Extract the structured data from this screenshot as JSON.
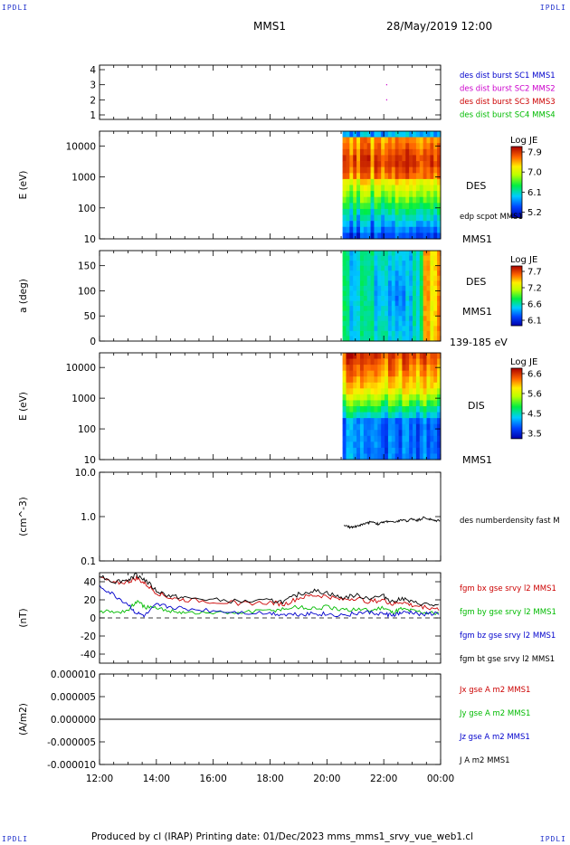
{
  "header": {
    "corner_tl": "IPDLI",
    "corner_tr": "IPDLI",
    "corner_bl": "IPDLI",
    "corner_br": "IPDLI",
    "title": "MMS1",
    "date": "28/May/2019 12:00"
  },
  "footer": {
    "text": "Produced by cl (IRAP)   Printing date: 01/Dec/2023   mms_mms1_srvy_vue_web1.cl"
  },
  "chart_data": [
    {
      "type": "scatter",
      "name": "burst-intervals",
      "ylabel": "",
      "y_ticks": [
        "1",
        "2",
        "3",
        "4"
      ],
      "ylim": [
        0.7,
        4.3
      ],
      "legend": [
        {
          "label": "des dist burst SC1 MMS1",
          "color": "#0000cc"
        },
        {
          "label": "des dist burst SC2 MMS2",
          "color": "#cc00cc"
        },
        {
          "label": "des dist burst SC3 MMS3",
          "color": "#cc0000"
        },
        {
          "label": "des dist burst SC4 MMS4",
          "color": "#00bb00"
        }
      ],
      "points": [
        {
          "x": 22.1,
          "y": 3,
          "color": "#cc00cc"
        },
        {
          "x": 22.1,
          "y": 2,
          "color": "#cc00cc"
        }
      ]
    },
    {
      "type": "heatmap",
      "name": "des-energy-spectrogram",
      "ylabel": "E (eV)",
      "scale": "log",
      "y_ticks": [
        "10",
        "100",
        "1000",
        "10000"
      ],
      "ylim": [
        10,
        30000
      ],
      "data_start_hour": 20.55,
      "side_labels": [
        "DES",
        "edp scpot MMS1",
        "MMS1"
      ],
      "colorbar": {
        "title": "Log JE",
        "ticks": [
          "7.9",
          "7.0",
          "6.1",
          "5.2"
        ],
        "range": [
          5.2,
          7.9
        ]
      }
    },
    {
      "type": "heatmap",
      "name": "des-pitch-angle",
      "ylabel": "a (deg)",
      "y_ticks": [
        "0",
        "50",
        "100",
        "150"
      ],
      "ylim": [
        0,
        180
      ],
      "data_start_hour": 20.55,
      "side_labels": [
        "DES",
        "MMS1",
        "139-185 eV"
      ],
      "colorbar": {
        "title": "Log JE",
        "ticks": [
          "7.7",
          "7.2",
          "6.6",
          "6.1"
        ],
        "range": [
          6.1,
          7.7
        ]
      }
    },
    {
      "type": "heatmap",
      "name": "dis-energy-spectrogram",
      "ylabel": "E (eV)",
      "scale": "log",
      "y_ticks": [
        "10",
        "100",
        "1000",
        "10000"
      ],
      "ylim": [
        10,
        30000
      ],
      "data_start_hour": 20.55,
      "side_labels": [
        "DIS",
        "MMS1"
      ],
      "colorbar": {
        "title": "Log JE",
        "ticks": [
          "6.6",
          "5.6",
          "4.5",
          "3.5"
        ],
        "range": [
          3.5,
          6.6
        ]
      }
    },
    {
      "type": "line",
      "name": "number-density",
      "ylabel": "(cm^-3)",
      "scale": "log",
      "y_ticks": [
        "0.1",
        "1.0",
        "10.0"
      ],
      "ylim": [
        0.1,
        10
      ],
      "legend": [
        {
          "label": "des numberdensity fast M",
          "color": "#000000"
        }
      ],
      "series": [
        {
          "name": "des numberdensity fast M",
          "color": "#000000",
          "x": [
            20.6,
            20.8,
            21.0,
            21.2,
            21.4,
            21.6,
            21.8,
            22.0,
            22.2,
            22.4,
            22.6,
            22.8,
            23.0,
            23.2,
            23.4,
            23.6,
            23.8,
            24.0
          ],
          "y": [
            0.62,
            0.58,
            0.6,
            0.65,
            0.7,
            0.78,
            0.68,
            0.75,
            0.8,
            0.72,
            0.85,
            0.78,
            0.9,
            0.82,
            0.95,
            0.88,
            0.8,
            0.85
          ]
        }
      ]
    },
    {
      "type": "line",
      "name": "magnetic-field",
      "ylabel": "(nT)",
      "y_ticks": [
        "-40",
        "-20",
        "0",
        "20",
        "40"
      ],
      "ylim": [
        -50,
        50
      ],
      "zero_line": "dashed",
      "legend": [
        {
          "label": "fgm bx gse srvy l2 MMS1",
          "color": "#cc0000"
        },
        {
          "label": "fgm by gse srvy l2 MMS1",
          "color": "#00bb00"
        },
        {
          "label": "fgm bz gse srvy l2 MMS1",
          "color": "#0000cc"
        },
        {
          "label": "fgm bt gse srvy l2 MMS1",
          "color": "#000000"
        }
      ],
      "series": [
        {
          "name": "fgm bx gse srvy l2 MMS1",
          "color": "#cc0000",
          "x": [
            12.0,
            12.5,
            13.0,
            13.3,
            13.6,
            14.0,
            14.5,
            15.0,
            16.0,
            17.0,
            18.0,
            18.5,
            19.0,
            19.5,
            20.0,
            20.5,
            21.0,
            21.5,
            22.0,
            22.3,
            22.6,
            23.0,
            23.5,
            24.0
          ],
          "y": [
            45,
            38,
            40,
            44,
            38,
            28,
            22,
            20,
            18,
            16,
            17,
            15,
            22,
            25,
            24,
            20,
            22,
            18,
            20,
            15,
            18,
            14,
            12,
            10
          ]
        },
        {
          "name": "fgm by gse srvy l2 MMS1",
          "color": "#00bb00",
          "x": [
            12.0,
            12.5,
            13.0,
            13.3,
            13.6,
            14.0,
            14.5,
            15.0,
            16.0,
            17.0,
            18.0,
            18.5,
            19.0,
            19.5,
            20.0,
            20.5,
            21.0,
            21.5,
            22.0,
            22.3,
            22.6,
            23.0,
            23.5,
            24.0
          ],
          "y": [
            8,
            6,
            8,
            18,
            12,
            10,
            8,
            6,
            5,
            6,
            8,
            10,
            12,
            10,
            12,
            8,
            10,
            8,
            12,
            6,
            10,
            8,
            6,
            5
          ]
        },
        {
          "name": "fgm bz gse srvy l2 MMS1",
          "color": "#0000cc",
          "x": [
            12.0,
            12.5,
            13.0,
            13.3,
            13.6,
            14.0,
            14.5,
            15.0,
            16.0,
            17.0,
            18.0,
            18.5,
            19.0,
            19.5,
            20.0,
            20.5,
            21.0,
            21.5,
            22.0,
            22.3,
            22.6,
            23.0,
            23.5,
            24.0
          ],
          "y": [
            35,
            25,
            15,
            5,
            2,
            14,
            12,
            10,
            8,
            6,
            5,
            4,
            4,
            5,
            4,
            3,
            5,
            6,
            4,
            3,
            5,
            6,
            4,
            5
          ]
        },
        {
          "name": "fgm bt gse srvy l2 MMS1",
          "color": "#000000",
          "x": [
            12.0,
            12.5,
            13.0,
            13.3,
            13.6,
            14.0,
            14.5,
            15.0,
            16.0,
            17.0,
            18.0,
            18.5,
            19.0,
            19.5,
            20.0,
            20.5,
            21.0,
            21.5,
            22.0,
            22.3,
            22.6,
            23.0,
            23.5,
            24.0
          ],
          "y": [
            47,
            40,
            42,
            48,
            42,
            30,
            24,
            22,
            20,
            18,
            19,
            18,
            26,
            30,
            28,
            22,
            25,
            22,
            24,
            18,
            22,
            17,
            15,
            13
          ]
        }
      ]
    },
    {
      "type": "line",
      "name": "current-density",
      "ylabel": "(A/m2)",
      "y_ticks": [
        "-0.000010",
        "-0.000005",
        "0.000000",
        "0.000005",
        "0.000010"
      ],
      "ylim": [
        -1e-05,
        1e-05
      ],
      "legend": [
        {
          "label": "Jx gse A m2 MMS1",
          "color": "#cc0000"
        },
        {
          "label": "Jy gse A m2 MMS1",
          "color": "#00bb00"
        },
        {
          "label": "Jz gse A m2 MMS1",
          "color": "#0000cc"
        },
        {
          "label": "J A m2 MMS1",
          "color": "#000000"
        }
      ],
      "series": [
        {
          "name": "J A m2 MMS1",
          "color": "#000000",
          "x": [
            12.0,
            13.0,
            14.0,
            15.0,
            16.0,
            17.0,
            18.0,
            19.0,
            20.0,
            21.0,
            22.0,
            23.0,
            24.0
          ],
          "y": [
            0.0,
            0.0,
            0.0,
            0.0,
            0.0,
            0.0,
            0.0,
            0.0,
            0.0,
            0.0,
            0.0,
            0.0,
            0.0
          ]
        }
      ]
    }
  ],
  "x_axis": {
    "ticks": [
      "12:00",
      "14:00",
      "16:00",
      "18:00",
      "20:00",
      "22:00",
      "00:00"
    ],
    "range_hours": [
      12,
      24
    ]
  }
}
